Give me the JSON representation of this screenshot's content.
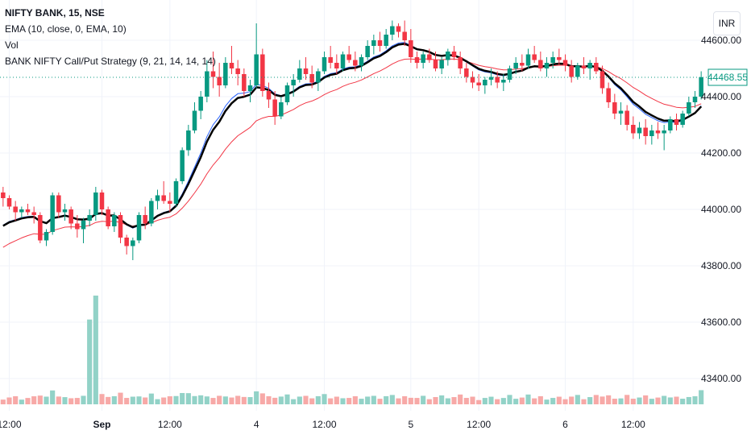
{
  "header": {
    "symbol": "NIFTY BANK, 15, NSE",
    "indicators": [
      "EMA (10, close, 0, EMA, 10)",
      "Vol",
      "BANK NIFTY Call/Put Strategy (9, 21, 14, 14, 14)"
    ],
    "currency": "INR"
  },
  "colors": {
    "up": "#089981",
    "down": "#f23645",
    "ema10": "#000000",
    "ema_fast": "#2962ff",
    "ema_slow": "#f23645",
    "vol_up": "#92d2c7",
    "vol_down": "#f7a9a7",
    "grid": "#f0f3fa",
    "text": "#131722"
  },
  "chart_data": {
    "type": "candlestick",
    "ylim": [
      43300,
      44720
    ],
    "y_ticks": [
      44600,
      44400,
      44200,
      44000,
      43800,
      43600,
      43400
    ],
    "y_tick_labels": [
      "44600.00",
      "44400.00",
      "44200.00",
      "44000.00",
      "43800.00",
      "43600.00",
      "43400.00"
    ],
    "x_tick_labels": [
      {
        "i": 1,
        "label": "12:00",
        "bold": false
      },
      {
        "i": 16,
        "label": "Sep",
        "bold": true
      },
      {
        "i": 27,
        "label": "12:00",
        "bold": false
      },
      {
        "i": 41,
        "label": "4",
        "bold": false
      },
      {
        "i": 52,
        "label": "12:00",
        "bold": false
      },
      {
        "i": 66,
        "label": "5",
        "bold": false
      },
      {
        "i": 77,
        "label": "12:00",
        "bold": false
      },
      {
        "i": 91,
        "label": "6",
        "bold": false
      },
      {
        "i": 102,
        "label": "12:00",
        "bold": false
      }
    ],
    "last_price": 44468.55,
    "last_price_label": "44468.55",
    "volume_spikes": [
      {
        "i": 14,
        "rel": 0.78
      },
      {
        "i": 15,
        "rel": 1.0
      }
    ],
    "candles": [
      [
        44060,
        44080,
        44010,
        44040
      ],
      [
        44040,
        44050,
        44000,
        44010
      ],
      [
        44010,
        44030,
        43960,
        43990
      ],
      [
        43990,
        44010,
        43970,
        44000
      ],
      [
        44000,
        44020,
        43980,
        43990
      ],
      [
        43990,
        44010,
        43950,
        43980
      ],
      [
        43980,
        43990,
        43880,
        43890
      ],
      [
        43890,
        43930,
        43870,
        43920
      ],
      [
        43920,
        44060,
        43910,
        44050
      ],
      [
        44050,
        44060,
        43970,
        43990
      ],
      [
        43990,
        44020,
        43960,
        44000
      ],
      [
        44000,
        44010,
        43930,
        43950
      ],
      [
        43950,
        43980,
        43900,
        43930
      ],
      [
        43930,
        43970,
        43880,
        43960
      ],
      [
        43960,
        44000,
        43940,
        43980
      ],
      [
        43980,
        44080,
        43960,
        44060
      ],
      [
        44060,
        44070,
        43980,
        44000
      ],
      [
        44000,
        44010,
        43930,
        43940
      ],
      [
        43940,
        43990,
        43920,
        43980
      ],
      [
        43980,
        43990,
        43880,
        43900
      ],
      [
        43900,
        43910,
        43840,
        43870
      ],
      [
        43870,
        43900,
        43820,
        43890
      ],
      [
        43890,
        43990,
        43880,
        43980
      ],
      [
        43980,
        44010,
        43930,
        43950
      ],
      [
        43950,
        44040,
        43940,
        44030
      ],
      [
        44030,
        44070,
        44000,
        44050
      ],
      [
        44050,
        44100,
        44020,
        44030
      ],
      [
        44030,
        44060,
        43990,
        44020
      ],
      [
        44020,
        44110,
        44010,
        44100
      ],
      [
        44100,
        44220,
        44090,
        44210
      ],
      [
        44210,
        44300,
        44190,
        44280
      ],
      [
        44280,
        44380,
        44270,
        44350
      ],
      [
        44350,
        44420,
        44320,
        44400
      ],
      [
        44400,
        44530,
        44380,
        44490
      ],
      [
        44490,
        44560,
        44430,
        44470
      ],
      [
        44470,
        44520,
        44400,
        44440
      ],
      [
        44440,
        44540,
        44430,
        44520
      ],
      [
        44520,
        44580,
        44480,
        44500
      ],
      [
        44500,
        44530,
        44440,
        44480
      ],
      [
        44480,
        44500,
        44400,
        44420
      ],
      [
        44420,
        44460,
        44380,
        44440
      ],
      [
        44440,
        44660,
        44430,
        44550
      ],
      [
        44550,
        44570,
        44400,
        44420
      ],
      [
        44420,
        44450,
        44360,
        44390
      ],
      [
        44390,
        44420,
        44300,
        44330
      ],
      [
        44330,
        44400,
        44320,
        44380
      ],
      [
        44380,
        44450,
        44370,
        44440
      ],
      [
        44440,
        44480,
        44400,
        44460
      ],
      [
        44460,
        44530,
        44450,
        44500
      ],
      [
        44500,
        44540,
        44460,
        44480
      ],
      [
        44480,
        44510,
        44430,
        44450
      ],
      [
        44450,
        44500,
        44420,
        44490
      ],
      [
        44490,
        44560,
        44480,
        44540
      ],
      [
        44540,
        44580,
        44500,
        44520
      ],
      [
        44520,
        44550,
        44480,
        44500
      ],
      [
        44500,
        44560,
        44490,
        44550
      ],
      [
        44550,
        44580,
        44520,
        44530
      ],
      [
        44530,
        44560,
        44490,
        44510
      ],
      [
        44510,
        44550,
        44490,
        44540
      ],
      [
        44540,
        44600,
        44530,
        44580
      ],
      [
        44580,
        44620,
        44550,
        44600
      ],
      [
        44600,
        44630,
        44560,
        44580
      ],
      [
        44580,
        44640,
        44570,
        44620
      ],
      [
        44620,
        44670,
        44600,
        44650
      ],
      [
        44650,
        44660,
        44610,
        44630
      ],
      [
        44630,
        44670,
        44580,
        44600
      ],
      [
        44600,
        44640,
        44520,
        44540
      ],
      [
        44540,
        44560,
        44500,
        44520
      ],
      [
        44520,
        44560,
        44500,
        44550
      ],
      [
        44550,
        44570,
        44520,
        44530
      ],
      [
        44530,
        44560,
        44490,
        44500
      ],
      [
        44500,
        44540,
        44480,
        44530
      ],
      [
        44530,
        44570,
        44510,
        44560
      ],
      [
        44560,
        44580,
        44530,
        44540
      ],
      [
        44540,
        44560,
        44480,
        44500
      ],
      [
        44500,
        44520,
        44450,
        44470
      ],
      [
        44470,
        44490,
        44430,
        44450
      ],
      [
        44450,
        44480,
        44420,
        44440
      ],
      [
        44440,
        44470,
        44410,
        44460
      ],
      [
        44460,
        44500,
        44440,
        44470
      ],
      [
        44470,
        44490,
        44430,
        44450
      ],
      [
        44450,
        44480,
        44420,
        44460
      ],
      [
        44460,
        44510,
        44450,
        44500
      ],
      [
        44500,
        44540,
        44480,
        44520
      ],
      [
        44520,
        44550,
        44490,
        44510
      ],
      [
        44510,
        44570,
        44500,
        44550
      ],
      [
        44550,
        44580,
        44520,
        44530
      ],
      [
        44530,
        44560,
        44490,
        44500
      ],
      [
        44500,
        44540,
        44470,
        44520
      ],
      [
        44520,
        44560,
        44500,
        44540
      ],
      [
        44540,
        44570,
        44510,
        44530
      ],
      [
        44530,
        44550,
        44490,
        44510
      ],
      [
        44510,
        44530,
        44450,
        44470
      ],
      [
        44470,
        44520,
        44460,
        44510
      ],
      [
        44510,
        44540,
        44480,
        44500
      ],
      [
        44500,
        44530,
        44460,
        44520
      ],
      [
        44520,
        44540,
        44480,
        44490
      ],
      [
        44490,
        44510,
        44410,
        44430
      ],
      [
        44430,
        44450,
        44360,
        44380
      ],
      [
        44380,
        44410,
        44320,
        44340
      ],
      [
        44340,
        44380,
        44300,
        44350
      ],
      [
        44350,
        44370,
        44280,
        44300
      ],
      [
        44300,
        44330,
        44250,
        44270
      ],
      [
        44270,
        44310,
        44250,
        44290
      ],
      [
        44290,
        44320,
        44230,
        44260
      ],
      [
        44260,
        44300,
        44230,
        44280
      ],
      [
        44280,
        44310,
        44250,
        44270
      ],
      [
        44270,
        44300,
        44210,
        44280
      ],
      [
        44280,
        44330,
        44270,
        44320
      ],
      [
        44320,
        44340,
        44280,
        44300
      ],
      [
        44300,
        44350,
        44290,
        44340
      ],
      [
        44340,
        44400,
        44330,
        44380
      ],
      [
        44380,
        44420,
        44360,
        44400
      ],
      [
        44400,
        44490,
        44390,
        44469
      ]
    ]
  }
}
